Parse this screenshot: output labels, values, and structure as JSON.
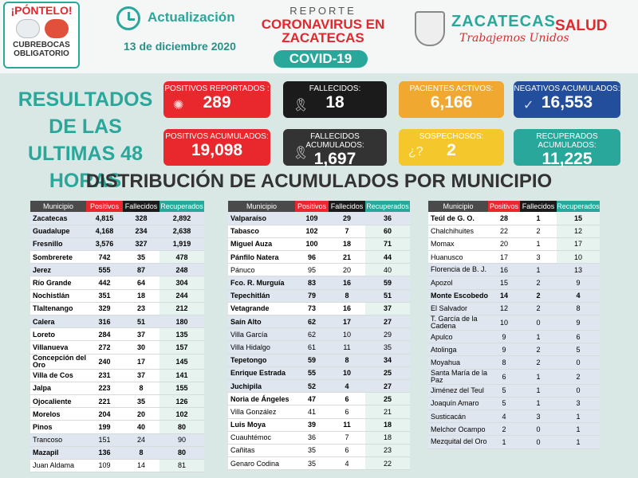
{
  "header": {
    "ponte_title": "¡PÓNTELO!",
    "ponte_sub": "CUBREBOCAS OBLIGATORIO",
    "actualizacion": "Actualización",
    "fecha": "13 de diciembre 2020",
    "reporte": "REPORTE",
    "coronavirus": "CORONAVIRUS EN ZACATECAS",
    "covid": "COVID-19",
    "zacatecas": "ZACATECAS",
    "trabajemos": "Trabajemos Unidos",
    "salud": "SALUD"
  },
  "resultados": "RESULTADOS DE LAS ULTIMAS 48 HORAS",
  "stats": [
    {
      "label": "POSITIVOS REPORTADOS :",
      "value": "289"
    },
    {
      "label": "FALLECIDOS:",
      "value": "18"
    },
    {
      "label": "PACIENTES ACTIVOS:",
      "value": "6,166"
    },
    {
      "label": "NEGATIVOS ACUMULADOS:",
      "value": "16,553"
    },
    {
      "label": "POSITIVOS ACUMULADOS:",
      "value": "19,098"
    },
    {
      "label": "FALLECIDOS ACUMULADOS:",
      "value": "1,697"
    },
    {
      "label": "SOSPECHOSOS:",
      "value": "2"
    },
    {
      "label": "RECUPERADOS ACUMULADOS:",
      "value": "11,225"
    }
  ],
  "distribucion": "DISTRIBUCIÓN DE ACUMULADOS POR MUNICIPIO",
  "columns": [
    "Municipio",
    "Positivos",
    "Fallecidos",
    "Recuperados"
  ],
  "colors": {
    "teal": "#2aa79b",
    "red": "#e8282c",
    "black": "#1b1b1b",
    "orange": "#f0a830",
    "blue": "#234e9b",
    "yellow": "#f4c82c"
  },
  "tables": [
    [
      [
        "Zacatecas",
        "4,815",
        "328",
        "2,892",
        1,
        1
      ],
      [
        "Guadalupe",
        "4,168",
        "234",
        "2,638",
        1,
        1
      ],
      [
        "Fresnillo",
        "3,576",
        "327",
        "1,919",
        1,
        1
      ],
      [
        "Sombrerete",
        "742",
        "35",
        "478",
        1,
        0
      ],
      [
        "Jerez",
        "555",
        "87",
        "248",
        1,
        1
      ],
      [
        "Río Grande",
        "442",
        "64",
        "304",
        1,
        0
      ],
      [
        "Nochistlán",
        "351",
        "18",
        "244",
        1,
        0
      ],
      [
        "Tlaltenango",
        "329",
        "23",
        "212",
        1,
        0
      ],
      [
        "Calera",
        "316",
        "51",
        "180",
        1,
        1
      ],
      [
        "Loreto",
        "284",
        "37",
        "135",
        1,
        0
      ],
      [
        "Villanueva",
        "272",
        "30",
        "157",
        1,
        0
      ],
      [
        "Concepción del Oro",
        "240",
        "17",
        "145",
        1,
        0
      ],
      [
        "Villa de Cos",
        "231",
        "37",
        "141",
        1,
        0
      ],
      [
        "Jalpa",
        "223",
        "8",
        "155",
        1,
        0
      ],
      [
        "Ojocaliente",
        "221",
        "35",
        "126",
        1,
        0
      ],
      [
        "Morelos",
        "204",
        "20",
        "102",
        1,
        0
      ],
      [
        "Pinos",
        "199",
        "40",
        "80",
        1,
        0
      ],
      [
        "Trancoso",
        "151",
        "24",
        "90",
        0,
        1
      ],
      [
        "Mazapil",
        "136",
        "8",
        "80",
        1,
        1
      ],
      [
        "Juan Aldama",
        "109",
        "14",
        "81",
        0,
        0
      ]
    ],
    [
      [
        "Valparaíso",
        "109",
        "29",
        "36",
        1,
        1
      ],
      [
        "Tabasco",
        "102",
        "7",
        "60",
        1,
        0
      ],
      [
        "Miguel Auza",
        "100",
        "18",
        "71",
        1,
        0
      ],
      [
        "Pánfilo Natera",
        "96",
        "21",
        "44",
        1,
        0
      ],
      [
        "Pánuco",
        "95",
        "20",
        "40",
        0,
        0
      ],
      [
        "Fco. R. Murguía",
        "83",
        "16",
        "59",
        1,
        1
      ],
      [
        "Tepechitlán",
        "79",
        "8",
        "51",
        1,
        1
      ],
      [
        "Vetagrande",
        "73",
        "16",
        "37",
        1,
        0
      ],
      [
        "Saín Alto",
        "62",
        "17",
        "27",
        1,
        1
      ],
      [
        "Villa García",
        "62",
        "10",
        "29",
        0,
        1
      ],
      [
        "Villa Hidalgo",
        "61",
        "11",
        "35",
        0,
        1
      ],
      [
        "Tepetongo",
        "59",
        "8",
        "34",
        1,
        1
      ],
      [
        "Enrique Estrada",
        "55",
        "10",
        "25",
        1,
        1
      ],
      [
        "Juchipila",
        "52",
        "4",
        "27",
        1,
        1
      ],
      [
        "Noria de Ángeles",
        "47",
        "6",
        "25",
        1,
        0
      ],
      [
        "Villa González",
        "41",
        "6",
        "21",
        0,
        0
      ],
      [
        "Luis Moya",
        "39",
        "11",
        "18",
        1,
        0
      ],
      [
        "Cuauhtémoc",
        "36",
        "7",
        "18",
        0,
        0
      ],
      [
        "Cañitas",
        "35",
        "6",
        "23",
        0,
        0
      ],
      [
        "Genaro Codina",
        "35",
        "4",
        "22",
        0,
        0
      ]
    ],
    [
      [
        "Teúl de G. O.",
        "28",
        "1",
        "15",
        1,
        0
      ],
      [
        "Chalchihuites",
        "22",
        "2",
        "12",
        0,
        0
      ],
      [
        "Momax",
        "20",
        "1",
        "17",
        0,
        0
      ],
      [
        "Huanusco",
        "17",
        "3",
        "10",
        0,
        0
      ],
      [
        "Florencia de B. J.",
        "16",
        "1",
        "13",
        0,
        1
      ],
      [
        "Apozol",
        "15",
        "2",
        "9",
        0,
        1
      ],
      [
        "Monte Escobedo",
        "14",
        "2",
        "4",
        1,
        1
      ],
      [
        "El Salvador",
        "12",
        "2",
        "8",
        0,
        1
      ],
      [
        "T. García de la Cadena",
        "10",
        "0",
        "9",
        0,
        1
      ],
      [
        "Apulco",
        "9",
        "1",
        "6",
        0,
        1
      ],
      [
        "Atolinga",
        "9",
        "2",
        "5",
        0,
        1
      ],
      [
        "Moyahua",
        "8",
        "2",
        "0",
        0,
        1
      ],
      [
        "Santa María de la Paz",
        "6",
        "1",
        "2",
        0,
        1
      ],
      [
        "Jiménez del Teul",
        "5",
        "1",
        "0",
        0,
        1
      ],
      [
        "Joaquín Amaro",
        "5",
        "1",
        "3",
        0,
        1
      ],
      [
        "Susticacán",
        "4",
        "3",
        "1",
        0,
        1
      ],
      [
        "Melchor Ocampo",
        "2",
        "0",
        "1",
        0,
        1
      ],
      [
        "Mezquital del Oro",
        "1",
        "0",
        "1",
        0,
        1
      ]
    ]
  ]
}
